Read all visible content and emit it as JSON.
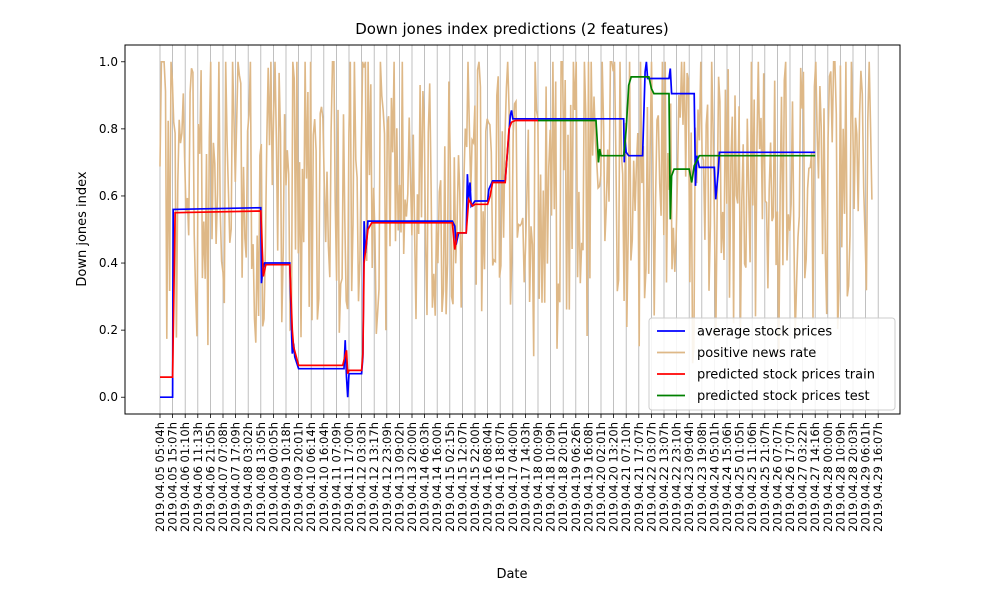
{
  "chart_data": {
    "type": "line",
    "title": "Down jones index predictions (2 features)",
    "xlabel": "Date",
    "ylabel": "Down jones index",
    "ylim": [
      -0.05,
      1.05
    ],
    "yticks": [
      "0.0",
      "0.2",
      "0.4",
      "0.6",
      "0.8",
      "1.0"
    ],
    "ytick_values": [
      0.0,
      0.2,
      0.4,
      0.6,
      0.8,
      1.0
    ],
    "grid": "vertical",
    "legend_position": "lower-right",
    "x_ticks": [
      "2019.04.05 05:04h",
      "2019.04.05 15:07h",
      "2019.04.06 01:10h",
      "2019.04.06 11:13h",
      "2019.04.06 21:05h",
      "2019.04.07 07:08h",
      "2019.04.07 17:09h",
      "2019.04.08 03:02h",
      "2019.04.08 13:05h",
      "2019.04.09 00:05h",
      "2019.04.09 10:18h",
      "2019.04.09 20:01h",
      "2019.04.10 06:14h",
      "2019.04.10 16:04h",
      "2019.04.11 07:09h",
      "2019.04.11 17:00h",
      "2019.04.12 03:03h",
      "2019.04.12 13:17h",
      "2019.04.12 23:09h",
      "2019.04.13 09:02h",
      "2019.04.13 20:00h",
      "2019.04.14 06:03h",
      "2019.04.14 16:00h",
      "2019.04.15 02:15h",
      "2019.04.15 12:07h",
      "2019.04.15 22:00h",
      "2019.04.16 08:04h",
      "2019.04.16 18:07h",
      "2019.04.17 04:00h",
      "2019.04.17 14:03h",
      "2019.04.18 00:09h",
      "2019.04.18 10:09h",
      "2019.04.18 20:01h",
      "2019.04.19 06:26h",
      "2019.04.19 16:08h",
      "2019.04.20 02:01h",
      "2019.04.20 13:20h",
      "2019.04.21 07:10h",
      "2019.04.21 17:07h",
      "2019.04.22 03:07h",
      "2019.04.22 13:07h",
      "2019.04.22 23:10h",
      "2019.04.23 09:04h",
      "2019.04.23 19:08h",
      "2019.04.24 05:01h",
      "2019.04.24 15:06h",
      "2019.04.25 01:05h",
      "2019.04.25 11:06h",
      "2019.04.25 21:07h",
      "2019.04.26 07:07h",
      "2019.04.26 17:07h",
      "2019.04.27 03:22h",
      "2019.04.27 14:16h",
      "2019.04.28 00:00h",
      "2019.04.28 10:09h",
      "2019.04.28 20:03h",
      "2019.04.29 06:01h",
      "2019.04.29 16:07h"
    ],
    "series": [
      {
        "name": "average stock prices",
        "color": "#0000ff",
        "segments": [
          [
            [
              0,
              0.0
            ],
            [
              1,
              0.0
            ],
            [
              1.05,
              0.56
            ],
            [
              8,
              0.565
            ],
            [
              8.05,
              0.34
            ],
            [
              8.15,
              0.38
            ],
            [
              8.3,
              0.4
            ],
            [
              10.3,
              0.4
            ],
            [
              10.45,
              0.18
            ],
            [
              10.5,
              0.13
            ],
            [
              10.6,
              0.16
            ],
            [
              10.7,
              0.12
            ],
            [
              11,
              0.085
            ],
            [
              14.6,
              0.085
            ],
            [
              14.7,
              0.17
            ],
            [
              14.8,
              0.06
            ],
            [
              14.9,
              0.0
            ],
            [
              15,
              0.07
            ],
            [
              16,
              0.07
            ],
            [
              16.1,
              0.12
            ],
            [
              16.2,
              0.525
            ],
            [
              16.3,
              0.43
            ],
            [
              16.4,
              0.46
            ],
            [
              16.5,
              0.525
            ],
            [
              23.2,
              0.525
            ],
            [
              23.4,
              0.51
            ],
            [
              23.5,
              0.455
            ],
            [
              23.7,
              0.49
            ],
            [
              24.3,
              0.49
            ],
            [
              24.4,
              0.665
            ],
            [
              24.5,
              0.59
            ],
            [
              24.6,
              0.64
            ],
            [
              24.7,
              0.57
            ],
            [
              25,
              0.585
            ],
            [
              26,
              0.585
            ],
            [
              26.1,
              0.62
            ],
            [
              26.4,
              0.645
            ],
            [
              27,
              0.645
            ],
            [
              27.4,
              0.645
            ],
            [
              27.8,
              0.84
            ],
            [
              27.9,
              0.855
            ],
            [
              28,
              0.83
            ],
            [
              29,
              0.83
            ],
            [
              30,
              0.83
            ],
            [
              32,
              0.83
            ],
            [
              32,
              0.83
            ],
            [
              36.8,
              0.83
            ],
            [
              36.85,
              0.7
            ],
            [
              36.9,
              0.77
            ],
            [
              37,
              0.73
            ],
            [
              37.2,
              0.72
            ],
            [
              38.3,
              0.72
            ],
            [
              38.5,
              0.97
            ],
            [
              38.6,
              1.0
            ],
            [
              38.7,
              0.95
            ],
            [
              40.4,
              0.95
            ],
            [
              40.5,
              0.98
            ],
            [
              40.6,
              0.905
            ],
            [
              42.4,
              0.905
            ],
            [
              42.5,
              0.63
            ],
            [
              42.6,
              0.72
            ],
            [
              42.8,
              0.685
            ],
            [
              44,
              0.685
            ],
            [
              44.1,
              0.59
            ],
            [
              44.3,
              0.67
            ],
            [
              44.4,
              0.73
            ],
            [
              52,
              0.73
            ]
          ]
        ]
      },
      {
        "name": "predicted stock prices train",
        "color": "#ff0000",
        "segments": [
          [
            [
              0,
              0.06
            ],
            [
              1,
              0.06
            ],
            [
              1.2,
              0.55
            ],
            [
              8.0,
              0.555
            ],
            [
              8.2,
              0.36
            ],
            [
              8.4,
              0.395
            ],
            [
              10.3,
              0.395
            ],
            [
              10.5,
              0.2
            ],
            [
              10.6,
              0.15
            ],
            [
              11,
              0.095
            ],
            [
              14.5,
              0.095
            ],
            [
              14.8,
              0.14
            ],
            [
              14.9,
              0.07
            ],
            [
              15,
              0.08
            ],
            [
              16,
              0.08
            ],
            [
              16.1,
              0.13
            ],
            [
              16.2,
              0.4
            ],
            [
              16.5,
              0.5
            ],
            [
              16.8,
              0.52
            ],
            [
              23.2,
              0.52
            ],
            [
              23.4,
              0.44
            ],
            [
              23.6,
              0.49
            ],
            [
              24.3,
              0.49
            ],
            [
              24.5,
              0.59
            ],
            [
              24.8,
              0.57
            ],
            [
              25,
              0.575
            ],
            [
              26,
              0.575
            ],
            [
              26.2,
              0.6
            ],
            [
              26.4,
              0.64
            ],
            [
              27.4,
              0.64
            ],
            [
              27.7,
              0.8
            ],
            [
              27.9,
              0.82
            ],
            [
              28.2,
              0.825
            ],
            [
              30,
              0.825
            ]
          ]
        ]
      },
      {
        "name": "predicted stock prices test",
        "color": "#008000",
        "segments": [
          [
            [
              30,
              0.825
            ],
            [
              32.2,
              0.825
            ],
            [
              34.6,
              0.825
            ],
            [
              34.8,
              0.7
            ],
            [
              34.9,
              0.74
            ],
            [
              35,
              0.72
            ],
            [
              36.8,
              0.72
            ],
            [
              37,
              0.8
            ],
            [
              37.2,
              0.93
            ],
            [
              37.4,
              0.955
            ],
            [
              38.8,
              0.955
            ],
            [
              39,
              0.92
            ],
            [
              39.2,
              0.905
            ],
            [
              40.4,
              0.905
            ],
            [
              40.5,
              0.53
            ],
            [
              40.6,
              0.66
            ],
            [
              40.8,
              0.68
            ],
            [
              42,
              0.68
            ],
            [
              42.2,
              0.64
            ],
            [
              42.4,
              0.69
            ],
            [
              42.8,
              0.72
            ],
            [
              52,
              0.72
            ]
          ]
        ]
      },
      {
        "name": "positive news rate",
        "color": "#deb887"
      }
    ]
  }
}
